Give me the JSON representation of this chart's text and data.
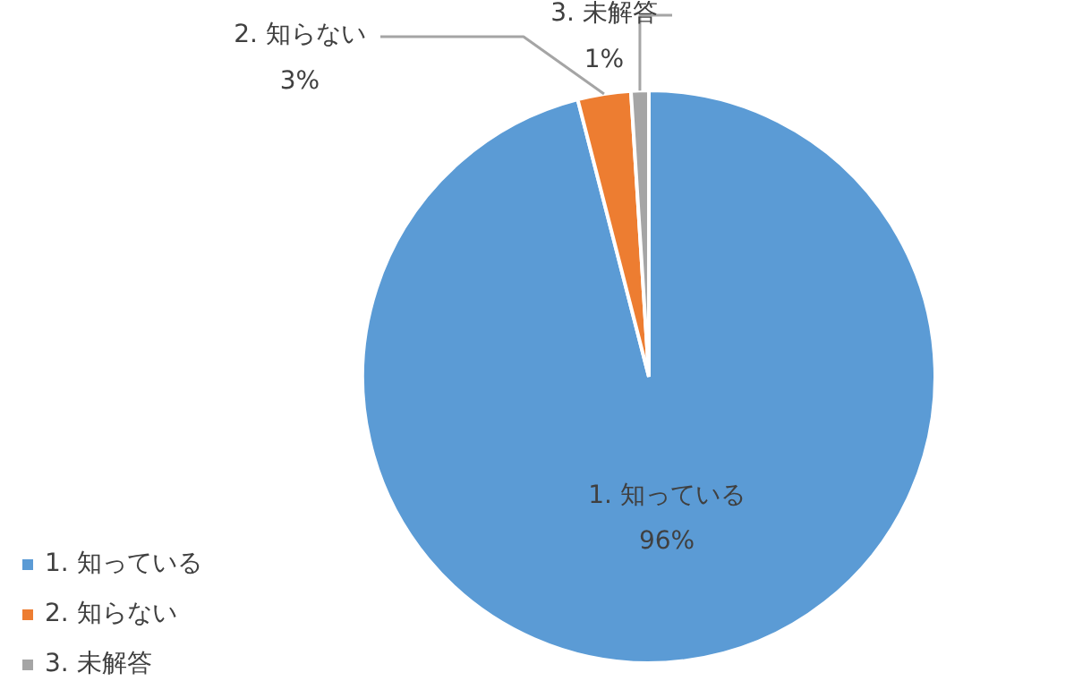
{
  "chart_data": {
    "type": "pie",
    "categories": [
      "1. 知っている",
      "2. 知らない",
      "3. 未解答"
    ],
    "values": [
      96,
      3,
      1
    ],
    "colors": [
      "#5b9bd5",
      "#ed7d31",
      "#a5a5a5"
    ],
    "value_labels": [
      "96%",
      "3%",
      "1%"
    ],
    "legend": "bottom left"
  }
}
